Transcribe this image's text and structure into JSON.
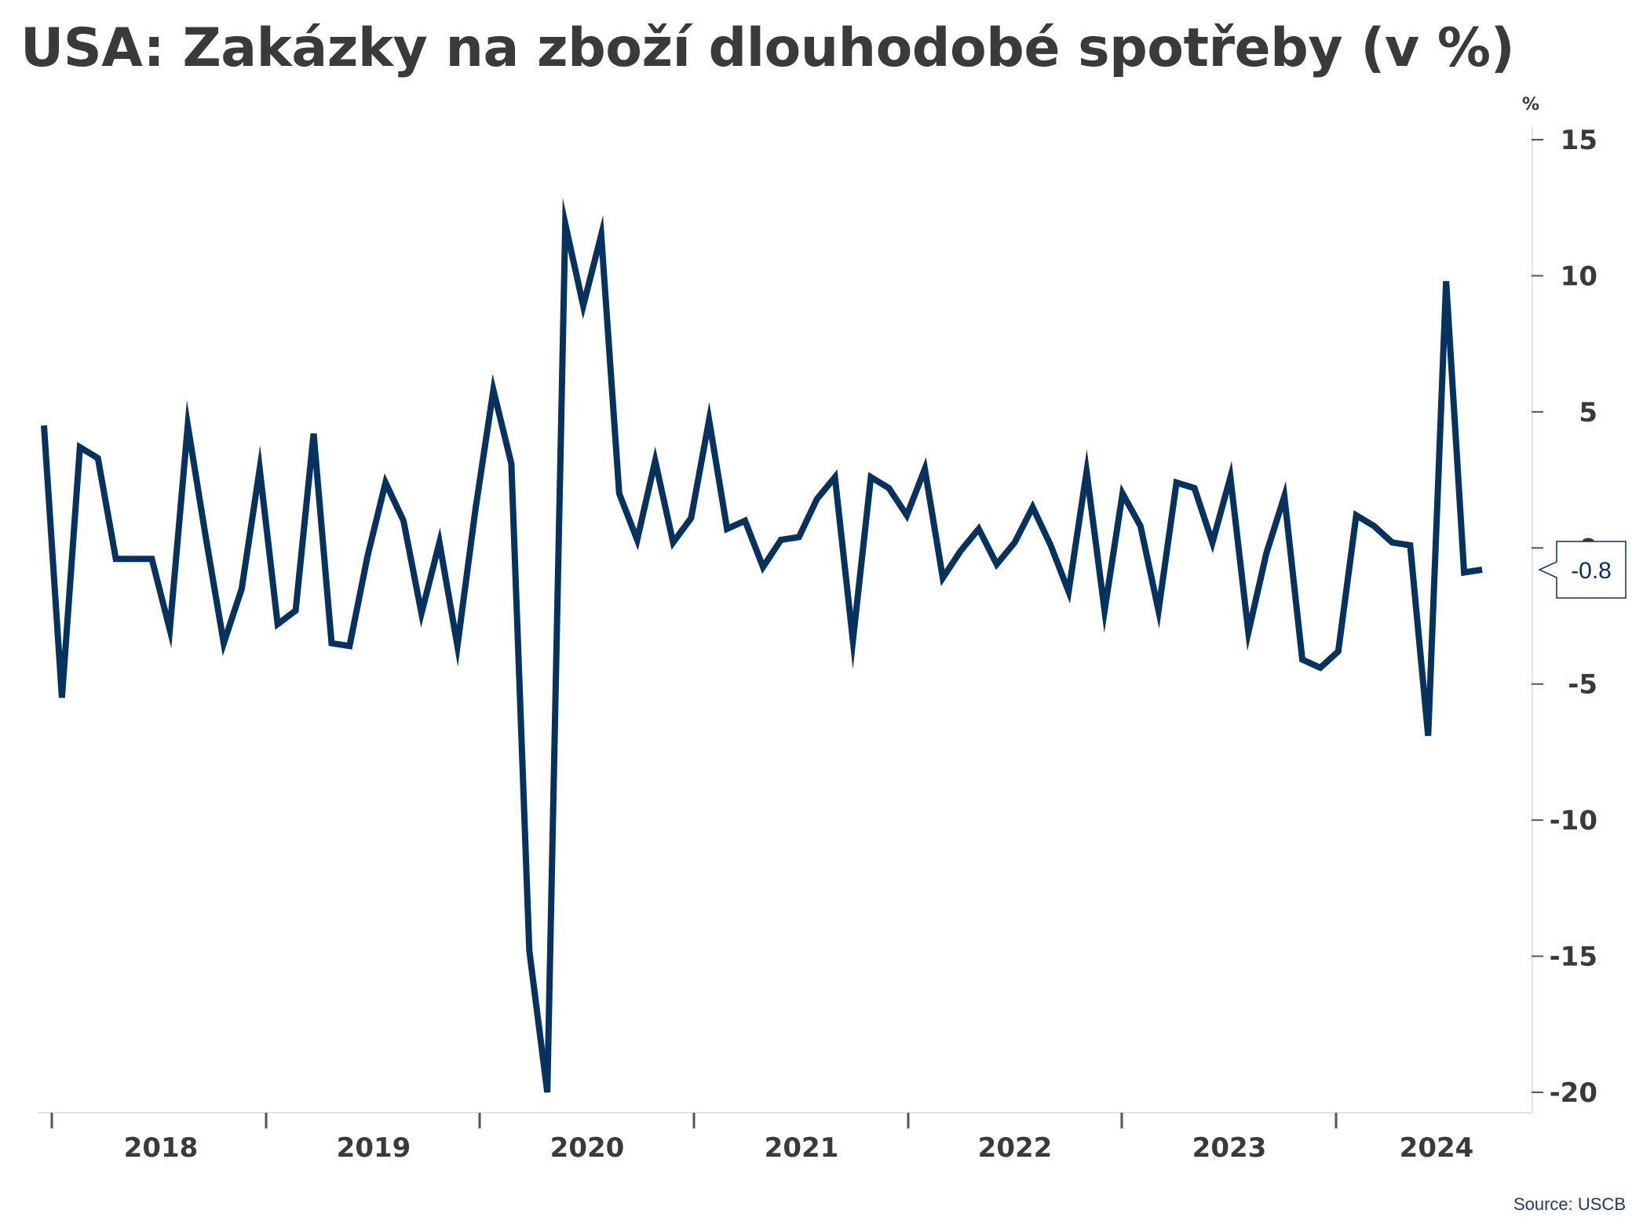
{
  "title": "USA: Zakázky na zboží dlouhodobé spotřeby (v %)",
  "source": "Source: USCB",
  "colors": {
    "line": "#06325f",
    "text": "#3a3a3a",
    "callout_border": "#06325f"
  },
  "chart_data": {
    "type": "line",
    "title": "USA: Zakázky na zboží dlouhodobé spotřeby (v %)",
    "ylabel": "%",
    "xlabel": "",
    "ylim": [
      -20,
      15
    ],
    "yticks": [
      15,
      10,
      5,
      "0",
      -5,
      -10,
      -15,
      -20
    ],
    "ytick_labels": [
      "15",
      "10",
      "5",
      "0",
      "-5",
      "-10",
      "-15",
      "-20"
    ],
    "y_axis_position": "right",
    "year_labels": [
      "2018",
      "2019",
      "2020",
      "2021",
      "2022",
      "2023",
      "2024"
    ],
    "grid": false,
    "last_value_label": "-0.8",
    "series": [
      {
        "values": [
          4.5,
          -5.5,
          3.7,
          3.3,
          -0.4,
          -0.4,
          -0.4,
          -3.0,
          4.5,
          0.4,
          -3.5,
          -1.5,
          2.9,
          -2.8,
          -2.3,
          4.2,
          -3.5,
          -3.6,
          -0.3,
          2.4,
          1.0,
          -2.4,
          0.2,
          -3.6,
          1.4,
          5.8,
          3.1,
          -14.8,
          -20.0,
          11.9,
          8.9,
          11.5,
          2.0,
          0.3,
          3.2,
          0.2,
          1.1,
          4.7,
          0.7,
          1.0,
          -0.7,
          0.3,
          0.4,
          1.8,
          2.6,
          -3.4,
          2.6,
          2.2,
          1.2,
          2.9,
          -1.1,
          -0.1,
          0.7,
          -0.6,
          0.2,
          1.5,
          0.1,
          -1.6,
          2.8,
          -2.3,
          2.0,
          0.8,
          -2.3,
          2.4,
          2.2,
          0.2,
          2.6,
          -3.1,
          -0.2,
          1.9,
          -4.1,
          -4.4,
          -3.8,
          1.2,
          0.8,
          0.2,
          0.1,
          -6.9,
          9.8,
          -0.9,
          -0.8
        ]
      }
    ]
  }
}
